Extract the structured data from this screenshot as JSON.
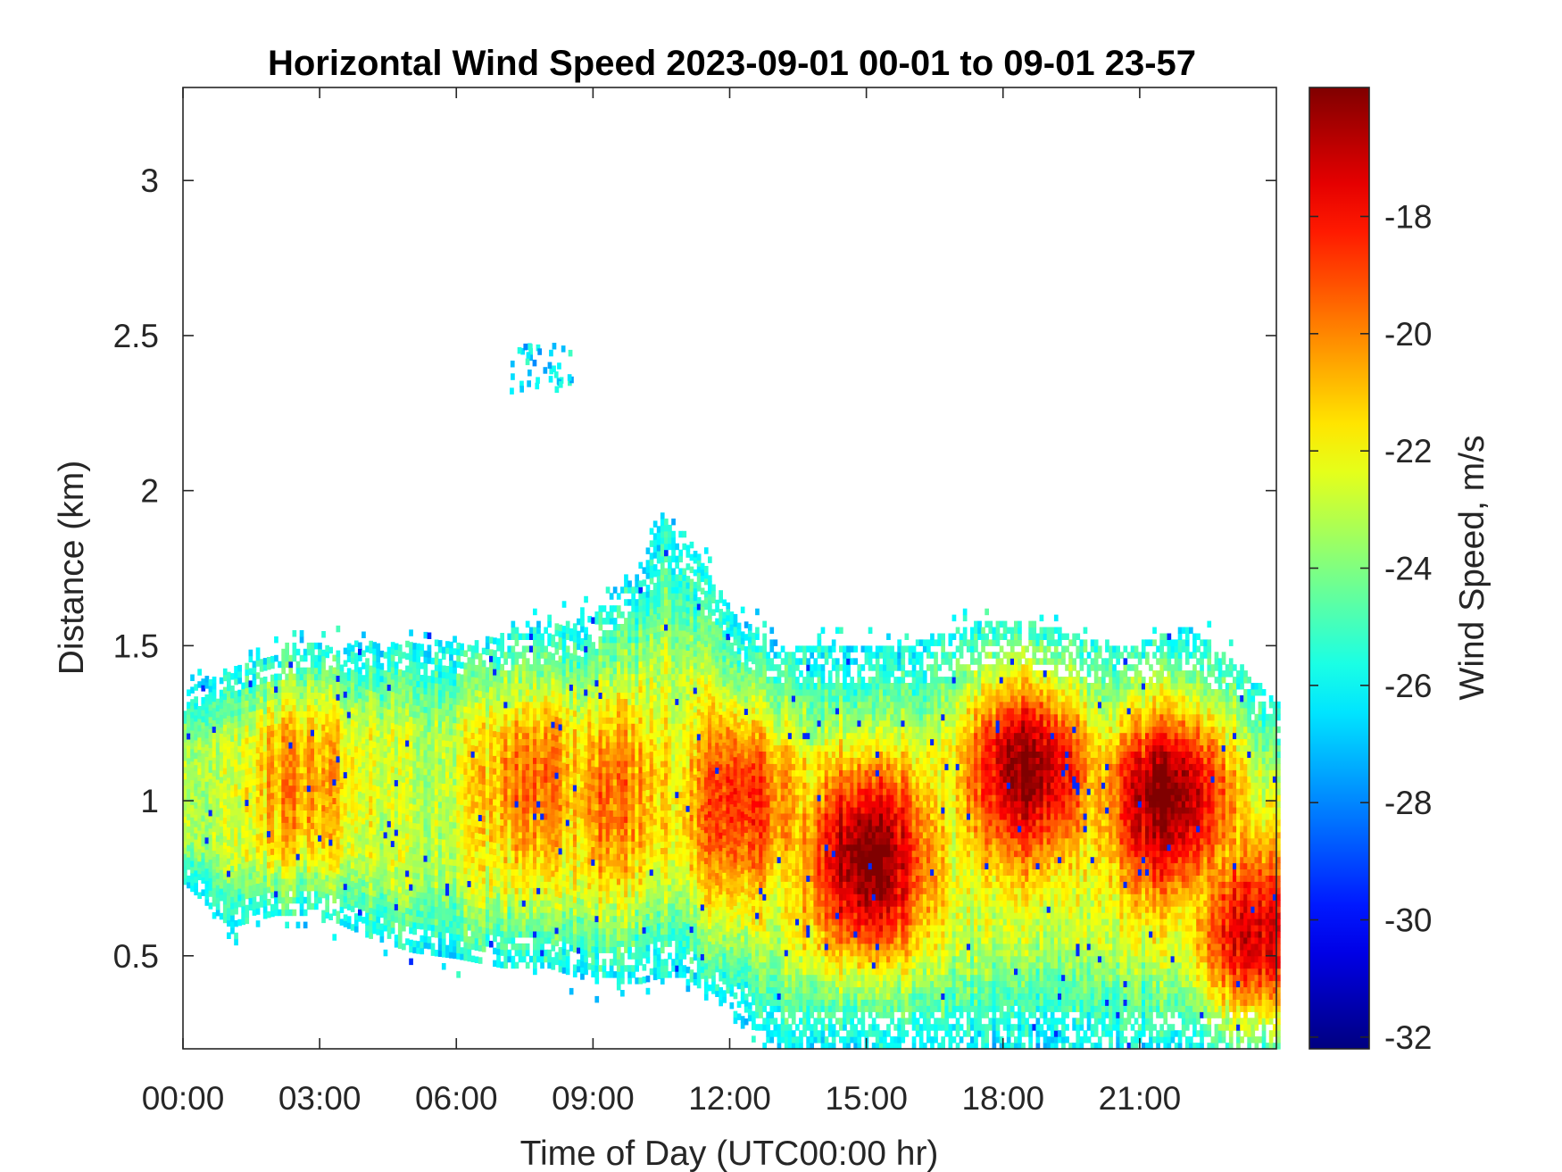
{
  "chart_data": {
    "type": "heatmap",
    "title": "Horizontal Wind Speed 2023-09-01 00-01 to 09-01 23-57",
    "xlabel": "Time of Day (UTC00:00 hr)",
    "ylabel": "Distance (km)",
    "x_ticks": [
      "00:00",
      "03:00",
      "06:00",
      "09:00",
      "12:00",
      "15:00",
      "18:00",
      "21:00"
    ],
    "x_tick_hours": [
      0,
      3,
      6,
      9,
      12,
      15,
      18,
      21
    ],
    "xlim_hours": [
      0,
      24
    ],
    "y_ticks": [
      "0.5",
      "1",
      "1.5",
      "2",
      "2.5",
      "3"
    ],
    "y_tick_values": [
      0.5,
      1,
      1.5,
      2,
      2.5,
      3
    ],
    "ylim": [
      0.2,
      3.3
    ],
    "colorbar": {
      "label": "Wind Speed, m/s",
      "ticks": [
        "-18",
        "-20",
        "-22",
        "-24",
        "-26",
        "-28",
        "-30",
        "-32"
      ],
      "tick_values": [
        -18,
        -20,
        -22,
        -24,
        -26,
        -28,
        -30,
        -32
      ],
      "clim": [
        -32.2,
        -15.8
      ],
      "colormap": "jet"
    },
    "grid": false,
    "region_boundaries": {
      "time_hours": [
        0,
        1,
        2,
        3,
        4,
        5,
        6,
        7,
        8,
        9,
        10,
        10.5,
        11,
        12,
        13,
        14,
        15,
        16,
        17,
        18,
        19,
        20,
        21,
        22,
        23,
        24
      ],
      "top_km": [
        1.35,
        1.42,
        1.47,
        1.5,
        1.5,
        1.5,
        1.5,
        1.53,
        1.55,
        1.6,
        1.75,
        1.9,
        1.85,
        1.6,
        1.5,
        1.5,
        1.5,
        1.5,
        1.55,
        1.58,
        1.55,
        1.5,
        1.5,
        1.55,
        1.45,
        1.3
      ],
      "bottom_km": [
        0.72,
        0.58,
        0.62,
        0.62,
        0.55,
        0.5,
        0.48,
        0.45,
        0.45,
        0.4,
        0.4,
        0.42,
        0.42,
        0.3,
        0.2,
        0.2,
        0.2,
        0.2,
        0.2,
        0.2,
        0.2,
        0.2,
        0.2,
        0.2,
        0.2,
        0.2
      ]
    },
    "high_speed_cores": [
      {
        "time_hours": 2.6,
        "distance_km": 1.05,
        "value": -21.5
      },
      {
        "time_hours": 7.6,
        "distance_km": 1.05,
        "value": -21.0
      },
      {
        "time_hours": 9.4,
        "distance_km": 1.0,
        "value": -21.0
      },
      {
        "time_hours": 12.2,
        "distance_km": 0.98,
        "value": -19.5
      },
      {
        "time_hours": 15.0,
        "distance_km": 0.8,
        "value": -16.5
      },
      {
        "time_hours": 18.5,
        "distance_km": 1.1,
        "value": -17.0
      },
      {
        "time_hours": 21.6,
        "distance_km": 1.0,
        "value": -16.8
      },
      {
        "time_hours": 23.5,
        "distance_km": 0.55,
        "value": -18.5
      }
    ],
    "isolated_patches": [
      {
        "time_hours": 7.8,
        "distance_km": 2.38,
        "value": -26.5
      }
    ]
  }
}
